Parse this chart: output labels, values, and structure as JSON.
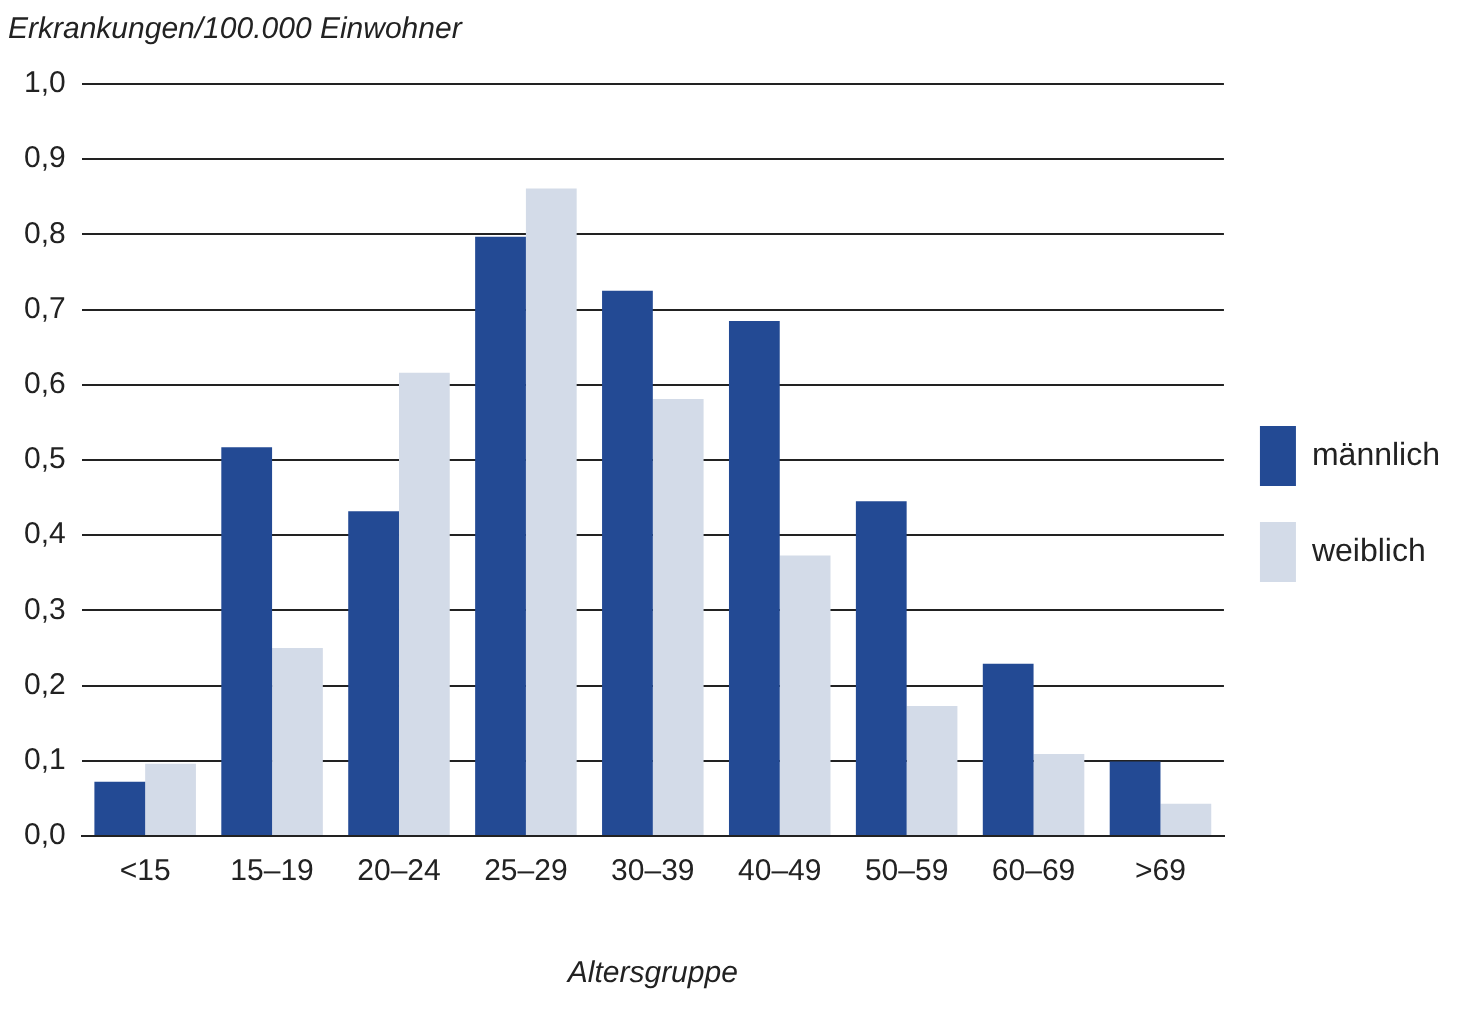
{
  "chart_data": {
    "type": "bar",
    "ylabel": "Erkrankungen/100.000 Einwohner",
    "xlabel": "Altersgruppe",
    "categories": [
      "<15",
      "15–19",
      "20–24",
      "25–29",
      "30–39",
      "40–49",
      "50–59",
      "60–69",
      ">69"
    ],
    "series": [
      {
        "name": "männlich",
        "color": "#234a94",
        "values": [
          0.072,
          0.517,
          0.432,
          0.797,
          0.725,
          0.685,
          0.445,
          0.229,
          0.099
        ]
      },
      {
        "name": "weiblich",
        "color": "#d3dbe8",
        "values": [
          0.096,
          0.25,
          0.616,
          0.861,
          0.581,
          0.373,
          0.173,
          0.109,
          0.043
        ]
      }
    ],
    "ylim": [
      0,
      1
    ],
    "yticks": [
      {
        "value": 0,
        "label": "0,0"
      },
      {
        "value": 0.1,
        "label": "0,1"
      },
      {
        "value": 0.2,
        "label": "0,2"
      },
      {
        "value": 0.3,
        "label": "0,3"
      },
      {
        "value": 0.4,
        "label": "0,4"
      },
      {
        "value": 0.5,
        "label": "0,5"
      },
      {
        "value": 0.6,
        "label": "0,6"
      },
      {
        "value": 0.7,
        "label": "0,7"
      },
      {
        "value": 0.8,
        "label": "0,8"
      },
      {
        "value": 0.9,
        "label": "0,9"
      },
      {
        "value": 1,
        "label": "1,0"
      }
    ],
    "grid": "y",
    "legend": "right"
  }
}
